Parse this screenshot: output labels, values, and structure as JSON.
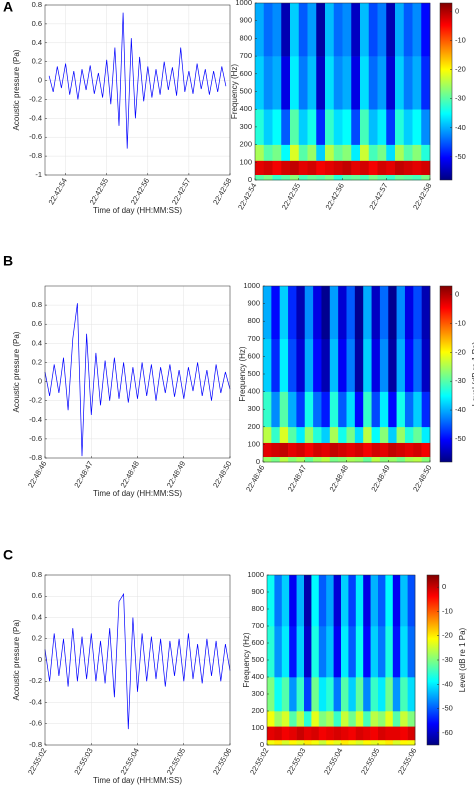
{
  "chart_data": [
    {
      "type": "line",
      "panel": "A",
      "xlabel": "Time of day (HH:MM:SS)",
      "ylabel": "Acoustic pressure (Pa)",
      "color": "#0000ff",
      "grid": true,
      "xlim": [
        81773.5,
        81778
      ],
      "ylim": [
        -1,
        0.8
      ],
      "xticks": [
        {
          "value": 81774,
          "label": "22:42:54"
        },
        {
          "value": 81775,
          "label": "22:42:55"
        },
        {
          "value": 81776,
          "label": "22:42:56"
        },
        {
          "value": 81777,
          "label": "22:42:57"
        },
        {
          "value": 81778,
          "label": "22:42:58"
        }
      ],
      "yticks": [
        -1,
        -0.8,
        -0.6,
        -0.4,
        -0.2,
        0,
        0.2,
        0.4,
        0.6,
        0.8
      ],
      "x": [
        81773.6,
        81773.7,
        81773.8,
        81773.9,
        81774.0,
        81774.1,
        81774.2,
        81774.3,
        81774.4,
        81774.5,
        81774.6,
        81774.7,
        81774.8,
        81774.9,
        81775.0,
        81775.1,
        81775.2,
        81775.3,
        81775.4,
        81775.5,
        81775.6,
        81775.7,
        81775.8,
        81775.9,
        81776.0,
        81776.1,
        81776.2,
        81776.3,
        81776.4,
        81776.5,
        81776.6,
        81776.7,
        81776.8,
        81776.9,
        81777.0,
        81777.1,
        81777.2,
        81777.3,
        81777.4,
        81777.5,
        81777.6,
        81777.7,
        81777.8,
        81777.9
      ],
      "values": [
        0.05,
        -0.12,
        0.15,
        -0.08,
        0.18,
        -0.15,
        0.1,
        -0.2,
        0.12,
        -0.1,
        0.16,
        -0.14,
        0.08,
        -0.18,
        0.22,
        -0.25,
        0.35,
        -0.48,
        0.72,
        -0.72,
        0.45,
        -0.4,
        0.25,
        -0.22,
        0.15,
        -0.18,
        0.12,
        -0.15,
        0.2,
        -0.1,
        0.14,
        -0.16,
        0.35,
        -0.12,
        0.1,
        -0.14,
        0.18,
        -0.09,
        0.12,
        -0.15,
        0.1,
        -0.12,
        0.15,
        -0.06
      ]
    },
    {
      "type": "heatmap",
      "ylabel": "Frequency (Hz)",
      "colormap": "jet",
      "xlim": [
        81774,
        81778
      ],
      "ylim": [
        0,
        1000
      ],
      "xticks": [
        {
          "value": 81774,
          "label": "22:42:54"
        },
        {
          "value": 81775,
          "label": "22:42:55"
        },
        {
          "value": 81776,
          "label": "22:42:56"
        },
        {
          "value": 81777,
          "label": "22:42:57"
        },
        {
          "value": 81778,
          "label": "22:42:58"
        }
      ],
      "yticks": [
        0,
        100,
        200,
        300,
        400,
        500,
        600,
        700,
        800,
        900,
        1000
      ],
      "clim": [
        -58,
        3
      ],
      "cticks": [
        0,
        -10,
        -20,
        -30,
        -40,
        -50
      ],
      "x_edges": [
        81774.0,
        81774.2,
        81774.4,
        81774.6,
        81774.8,
        81775.0,
        81775.2,
        81775.4,
        81775.6,
        81775.8,
        81776.0,
        81776.2,
        81776.4,
        81776.6,
        81776.8,
        81777.0,
        81777.2,
        81777.4,
        81777.6,
        81777.8,
        81778.0
      ],
      "y_edges": [
        0,
        30,
        110,
        200,
        400,
        700,
        1000
      ],
      "z": [
        [
          -30,
          -28,
          -32,
          -30,
          -27,
          -31,
          -29,
          -30,
          -28,
          -33,
          -30,
          -29,
          -31,
          -28,
          -30,
          -32,
          -29,
          -30,
          -31,
          -28
        ],
        [
          -3,
          -2,
          -4,
          -2,
          -1,
          -3,
          -2,
          -4,
          -3,
          -2,
          -1,
          -3,
          -2,
          -4,
          -2,
          -3,
          -1,
          -2,
          -3,
          -2
        ],
        [
          -25,
          -30,
          -28,
          -35,
          -22,
          -30,
          -26,
          -38,
          -24,
          -29,
          -27,
          -36,
          -23,
          -31,
          -28,
          -37,
          -25,
          -30,
          -27,
          -33
        ],
        [
          -33,
          -38,
          -35,
          -45,
          -30,
          -38,
          -34,
          -48,
          -32,
          -37,
          -35,
          -46,
          -31,
          -39,
          -36,
          -47,
          -33,
          -38,
          -35,
          -42
        ],
        [
          -38,
          -42,
          -40,
          -52,
          -36,
          -43,
          -39,
          -54,
          -37,
          -42,
          -40,
          -52,
          -37,
          -44,
          -41,
          -53,
          -38,
          -43,
          -40,
          -48
        ],
        [
          -40,
          -44,
          -42,
          -55,
          -38,
          -45,
          -41,
          -56,
          -39,
          -44,
          -42,
          -54,
          -39,
          -46,
          -43,
          -55,
          -40,
          -45,
          -42,
          -50
        ]
      ]
    },
    {
      "type": "line",
      "panel": "B",
      "xlabel": "Time of day (HH:MM:SS)",
      "ylabel": "Acoustic pressure (Pa)",
      "color": "#0000ff",
      "grid": true,
      "xlim": [
        82126,
        82130
      ],
      "ylim": [
        -0.8,
        1
      ],
      "xticks": [
        {
          "value": 82126,
          "label": "22:48:46"
        },
        {
          "value": 82127,
          "label": "22:48:47"
        },
        {
          "value": 82128,
          "label": "22:48:48"
        },
        {
          "value": 82129,
          "label": "22:48:49"
        },
        {
          "value": 82130,
          "label": "22:48:50"
        }
      ],
      "yticks": [
        -0.8,
        -0.6,
        -0.4,
        -0.2,
        0,
        0.2,
        0.4,
        0.6,
        0.8
      ],
      "x": [
        82126.0,
        82126.1,
        82126.2,
        82126.3,
        82126.4,
        82126.5,
        82126.6,
        82126.7,
        82126.8,
        82126.9,
        82127.0,
        82127.1,
        82127.2,
        82127.3,
        82127.4,
        82127.5,
        82127.6,
        82127.7,
        82127.8,
        82127.9,
        82128.0,
        82128.1,
        82128.2,
        82128.3,
        82128.4,
        82128.5,
        82128.6,
        82128.7,
        82128.8,
        82128.9,
        82129.0,
        82129.1,
        82129.2,
        82129.3,
        82129.4,
        82129.5,
        82129.6,
        82129.7,
        82129.8,
        82129.9,
        82130.0
      ],
      "values": [
        0.1,
        -0.15,
        0.18,
        -0.12,
        0.25,
        -0.3,
        0.45,
        0.82,
        -0.78,
        0.5,
        -0.35,
        0.3,
        -0.25,
        0.22,
        -0.2,
        0.25,
        -0.18,
        0.2,
        -0.22,
        0.15,
        -0.18,
        0.2,
        -0.15,
        0.18,
        -0.2,
        0.15,
        -0.12,
        0.18,
        -0.16,
        0.12,
        -0.18,
        0.15,
        -0.1,
        0.2,
        -0.15,
        0.12,
        -0.2,
        0.18,
        -0.12,
        0.1,
        -0.08
      ]
    },
    {
      "type": "heatmap",
      "ylabel": "Frequency (Hz)",
      "colorbar_label": "Level (dB re 1 Pa)",
      "colormap": "jet",
      "xlim": [
        82126,
        82130
      ],
      "ylim": [
        0,
        1000
      ],
      "xticks": [
        {
          "value": 82126,
          "label": "22:48:46"
        },
        {
          "value": 82127,
          "label": "22:48:47"
        },
        {
          "value": 82128,
          "label": "22:48:48"
        },
        {
          "value": 82129,
          "label": "22:48:49"
        },
        {
          "value": 82130,
          "label": "22:48:50"
        }
      ],
      "yticks": [
        0,
        100,
        200,
        300,
        400,
        500,
        600,
        700,
        800,
        900,
        1000
      ],
      "clim": [
        -58,
        3
      ],
      "cticks": [
        0,
        -10,
        -20,
        -30,
        -40,
        -50
      ],
      "x_edges": [
        82126.0,
        82126.2,
        82126.4,
        82126.6,
        82126.8,
        82127.0,
        82127.2,
        82127.4,
        82127.6,
        82127.8,
        82128.0,
        82128.2,
        82128.4,
        82128.6,
        82128.8,
        82129.0,
        82129.2,
        82129.4,
        82129.6,
        82129.8,
        82130.0
      ],
      "y_edges": [
        0,
        30,
        110,
        200,
        400,
        700,
        1000
      ],
      "z": [
        [
          -26,
          -28,
          -24,
          -27,
          -25,
          -29,
          -26,
          -24,
          -28,
          -27,
          -25,
          -26,
          -29,
          -24,
          -27,
          -26,
          -28,
          -25,
          -24,
          -27
        ],
        [
          -3,
          -2,
          -1,
          -3,
          -2,
          -4,
          -2,
          -3,
          -1,
          -2,
          -3,
          -2,
          -4,
          -2,
          -3,
          -1,
          -2,
          -3,
          -2,
          -4
        ],
        [
          -24,
          -32,
          -22,
          -30,
          -36,
          -26,
          -33,
          -38,
          -25,
          -34,
          -28,
          -37,
          -24,
          -35,
          -27,
          -38,
          -26,
          -33,
          -29,
          -36
        ],
        [
          -32,
          -42,
          -30,
          -40,
          -47,
          -34,
          -44,
          -49,
          -33,
          -45,
          -37,
          -50,
          -32,
          -46,
          -36,
          -50,
          -34,
          -44,
          -38,
          -48
        ],
        [
          -38,
          -48,
          -36,
          -46,
          -53,
          -40,
          -50,
          -55,
          -39,
          -51,
          -43,
          -56,
          -38,
          -52,
          -42,
          -56,
          -40,
          -50,
          -44,
          -54
        ],
        [
          -40,
          -50,
          -38,
          -48,
          -55,
          -42,
          -52,
          -57,
          -41,
          -53,
          -45,
          -57,
          -40,
          -54,
          -44,
          -57,
          -42,
          -52,
          -46,
          -55
        ]
      ]
    },
    {
      "type": "line",
      "panel": "C",
      "xlabel": "Time of day (HH:MM:SS)",
      "ylabel": "Acoustic pressure (Pa)",
      "color": "#0000ff",
      "grid": true,
      "xlim": [
        82502,
        82506
      ],
      "ylim": [
        -0.8,
        0.8
      ],
      "xticks": [
        {
          "value": 82502,
          "label": "22:55:02"
        },
        {
          "value": 82503,
          "label": "22:55:03"
        },
        {
          "value": 82504,
          "label": "22:55:04"
        },
        {
          "value": 82505,
          "label": "22:55:05"
        },
        {
          "value": 82506,
          "label": "22:55:06"
        }
      ],
      "yticks": [
        -0.8,
        -0.6,
        -0.4,
        -0.2,
        0,
        0.2,
        0.4,
        0.6,
        0.8
      ],
      "x": [
        82502.0,
        82502.1,
        82502.2,
        82502.3,
        82502.4,
        82502.5,
        82502.6,
        82502.7,
        82502.8,
        82502.9,
        82503.0,
        82503.1,
        82503.2,
        82503.3,
        82503.4,
        82503.5,
        82503.6,
        82503.7,
        82503.8,
        82503.9,
        82504.0,
        82504.1,
        82504.2,
        82504.3,
        82504.4,
        82504.5,
        82504.6,
        82504.7,
        82504.8,
        82504.9,
        82505.0,
        82505.1,
        82505.2,
        82505.3,
        82505.4,
        82505.5,
        82505.6,
        82505.7,
        82505.8,
        82505.9,
        82506.0
      ],
      "values": [
        0.1,
        -0.2,
        0.25,
        -0.15,
        0.2,
        -0.25,
        0.3,
        -0.2,
        0.22,
        -0.18,
        0.25,
        -0.2,
        0.18,
        -0.22,
        0.3,
        -0.35,
        0.55,
        0.62,
        -0.65,
        0.4,
        -0.3,
        0.25,
        -0.2,
        0.22,
        -0.18,
        0.2,
        -0.25,
        0.18,
        -0.15,
        0.2,
        -0.2,
        0.25,
        -0.18,
        0.15,
        -0.22,
        0.2,
        -0.15,
        0.18,
        -0.2,
        0.15,
        -0.1
      ]
    },
    {
      "type": "heatmap",
      "ylabel": "Frequency (Hz)",
      "colorbar_label": "Level (dB re 1 Pa)",
      "colormap": "jet",
      "xlim": [
        82502,
        82506
      ],
      "ylim": [
        0,
        1000
      ],
      "xticks": [
        {
          "value": 82502,
          "label": "22:55:02"
        },
        {
          "value": 82503,
          "label": "22:55:03"
        },
        {
          "value": 82504,
          "label": "22:55:04"
        },
        {
          "value": 82505,
          "label": "22:55:05"
        },
        {
          "value": 82506,
          "label": "22:55:06"
        }
      ],
      "yticks": [
        0,
        100,
        200,
        300,
        400,
        500,
        600,
        700,
        800,
        900,
        1000
      ],
      "clim": [
        -65,
        5
      ],
      "cticks": [
        0,
        -10,
        -20,
        -30,
        -40,
        -50,
        -60
      ],
      "x_edges": [
        82502.0,
        82502.2,
        82502.4,
        82502.6,
        82502.8,
        82503.0,
        82503.2,
        82503.4,
        82503.6,
        82503.8,
        82504.0,
        82504.2,
        82504.4,
        82504.6,
        82504.8,
        82505.0,
        82505.2,
        82505.4,
        82505.6,
        82505.8,
        82506.0
      ],
      "y_edges": [
        0,
        30,
        110,
        200,
        400,
        700,
        1000
      ],
      "z": [
        [
          -22,
          -20,
          -24,
          -21,
          -23,
          -20,
          -22,
          -25,
          -21,
          -23,
          -20,
          -22,
          -24,
          -21,
          -23,
          -22,
          -20,
          -24,
          -21,
          -22
        ],
        [
          -2,
          -1,
          -3,
          -2,
          0,
          -2,
          -1,
          -3,
          -2,
          -1,
          -2,
          -3,
          -1,
          -2,
          -3,
          -1,
          -2,
          -2,
          -3,
          -1
        ],
        [
          -22,
          -28,
          -24,
          -33,
          -26,
          -36,
          -23,
          -30,
          -27,
          -35,
          -25,
          -31,
          -24,
          -34,
          -26,
          -29,
          -23,
          -33,
          -25,
          -30
        ],
        [
          -30,
          -38,
          -33,
          -46,
          -35,
          -52,
          -31,
          -40,
          -36,
          -48,
          -33,
          -42,
          -32,
          -47,
          -35,
          -40,
          -31,
          -46,
          -34,
          -41
        ],
        [
          -36,
          -46,
          -40,
          -55,
          -42,
          -60,
          -37,
          -48,
          -43,
          -57,
          -40,
          -50,
          -38,
          -56,
          -42,
          -48,
          -37,
          -55,
          -41,
          -49
        ],
        [
          -38,
          -48,
          -42,
          -57,
          -44,
          -62,
          -39,
          -50,
          -45,
          -59,
          -42,
          -52,
          -40,
          -58,
          -44,
          -50,
          -39,
          -57,
          -43,
          -51
        ]
      ]
    }
  ]
}
